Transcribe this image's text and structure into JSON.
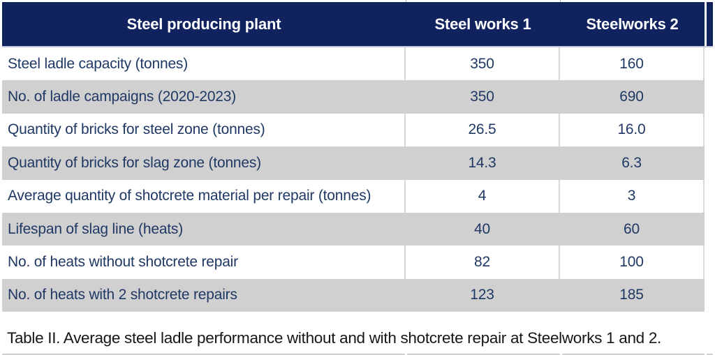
{
  "table": {
    "columns": [
      "Steel producing plant",
      "Steel works 1",
      "Steelworks 2"
    ],
    "rows": [
      {
        "label": "Steel ladle capacity (tonnes)",
        "works1": "350",
        "works2": "160"
      },
      {
        "label": "No. of ladle campaigns (2020-2023)",
        "works1": "350",
        "works2": "690"
      },
      {
        "label": "Quantity of bricks for steel zone (tonnes)",
        "works1": "26.5",
        "works2": "16.0"
      },
      {
        "label": "Quantity of bricks for slag zone (tonnes)",
        "works1": "14.3",
        "works2": "6.3"
      },
      {
        "label": "Average quantity of shotcrete material per repair (tonnes)",
        "works1": "4",
        "works2": "3"
      },
      {
        "label": "Lifespan of slag line (heats)",
        "works1": "40",
        "works2": "60"
      },
      {
        "label": "No. of heats without shotcrete repair",
        "works1": "82",
        "works2": "100"
      },
      {
        "label": "No. of heats with 2 shotcrete repairs",
        "works1": "123",
        "works2": "185"
      }
    ],
    "caption": "Table II. Average steel ladle performance without and with shotcrete repair at Steelworks 1 and 2.",
    "colors": {
      "header_bg": "#10235E",
      "header_text": "#FFFFFF",
      "body_text": "#1F3864",
      "alt_row_bg": "#D0D0D0",
      "gridline": "#D8D8D8"
    }
  },
  "chart_data": {
    "type": "table",
    "title": "Table II. Average steel ladle performance without and with shotcrete repair at Steelworks 1 and 2.",
    "columns": [
      "Steel producing plant",
      "Steel works 1",
      "Steelworks 2"
    ],
    "rows": [
      [
        "Steel ladle capacity (tonnes)",
        350,
        160
      ],
      [
        "No. of ladle campaigns (2020-2023)",
        350,
        690
      ],
      [
        "Quantity of bricks for steel zone (tonnes)",
        26.5,
        16.0
      ],
      [
        "Quantity of bricks for slag zone (tonnes)",
        14.3,
        6.3
      ],
      [
        "Average quantity of shotcrete material per repair (tonnes)",
        4,
        3
      ],
      [
        "Lifespan of slag line (heats)",
        40,
        60
      ],
      [
        "No. of heats without shotcrete repair",
        82,
        100
      ],
      [
        "No. of heats with 2 shotcrete repairs",
        123,
        185
      ]
    ]
  }
}
